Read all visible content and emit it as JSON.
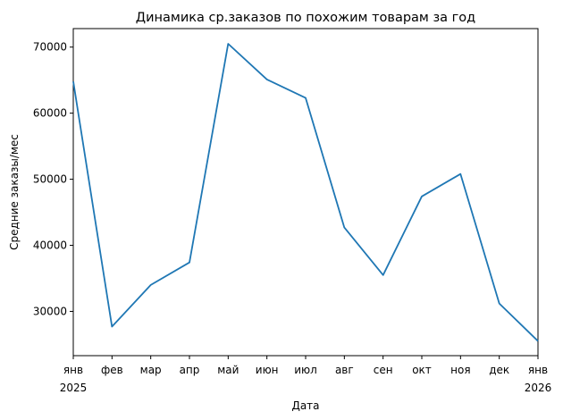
{
  "chart_data": {
    "type": "line",
    "title": "Динамика ср.заказов по похожим товарам за год",
    "xlabel": "Дата",
    "ylabel": "Средние заказы/мес",
    "x_tick_labels": [
      [
        "янв",
        "2025"
      ],
      [
        "фев"
      ],
      [
        "мар"
      ],
      [
        "апр"
      ],
      [
        "май"
      ],
      [
        "июн"
      ],
      [
        "июл"
      ],
      [
        "авг"
      ],
      [
        "сен"
      ],
      [
        "окт"
      ],
      [
        "ноя"
      ],
      [
        "дек"
      ],
      [
        "янв",
        "2026"
      ]
    ],
    "x": [
      "2025-01",
      "2025-02",
      "2025-03",
      "2025-04",
      "2025-05",
      "2025-06",
      "2025-07",
      "2025-08",
      "2025-09",
      "2025-10",
      "2025-11",
      "2025-12",
      "2026-01"
    ],
    "series": [
      {
        "values": [
          64800,
          27700,
          34000,
          37400,
          70500,
          65100,
          62300,
          42700,
          35500,
          47400,
          50800,
          31200,
          25500
        ]
      }
    ],
    "yticks": [
      30000,
      40000,
      50000,
      60000,
      70000
    ],
    "ylim": [
      23300,
      72800
    ],
    "grid": false,
    "line_color": "#1f77b4"
  }
}
